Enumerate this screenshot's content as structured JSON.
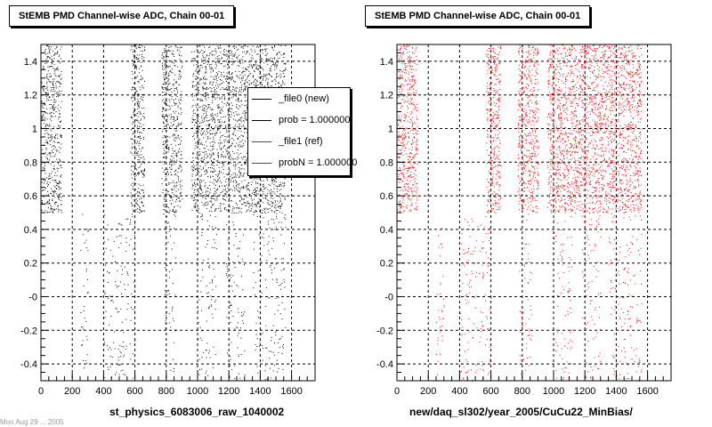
{
  "panels": [
    {
      "title": "StEMB PMD Channel-wise ADC, Chain 00-01",
      "xlabel": "st_physics_6083006_raw_1040002",
      "color": "#000000"
    },
    {
      "title": "StEMB PMD Channel-wise ADC, Chain 00-01",
      "xlabel": "new/daq_sl302/year_2005/CuCu22_MinBias/",
      "color": "#ff0000"
    }
  ],
  "legend": {
    "entries": [
      {
        "label": "_file0 (new)",
        "color": "#000000"
      },
      {
        "label": "prob = 1.000000",
        "color": "#000000"
      },
      {
        "label": "_file1 (ref)",
        "color": "#ff0000"
      },
      {
        "label": "probN = 1.000000",
        "color": "#ff0000"
      }
    ]
  },
  "footer_note": "Mon Aug 29 ... 2005",
  "chart_data": [
    {
      "type": "scatter",
      "title": "StEMB PMD Channel-wise ADC, Chain 00-01",
      "xlabel": "st_physics_6083006_raw_1040002",
      "ylabel": "",
      "xlim": [
        0,
        1750
      ],
      "ylim": [
        -0.5,
        1.5
      ],
      "xticks": [
        0,
        200,
        400,
        600,
        800,
        1000,
        1200,
        1400,
        1600
      ],
      "yticks": [
        -0.4,
        -0.2,
        0,
        0.2,
        0.4,
        0.6,
        0.8,
        1,
        1.2,
        1.4
      ],
      "ytick_labels": [
        "-0.4",
        "-0.2",
        "-0",
        "0.2",
        "0.4",
        "0.6",
        "0.8",
        "1",
        "1.2",
        "1.4"
      ],
      "grid": true,
      "series_color": "#000000",
      "dense_bands": [
        [
          0,
          130
        ],
        [
          570,
          660
        ],
        [
          770,
          900
        ],
        [
          960,
          1560
        ]
      ],
      "dense_y_range": [
        0.5,
        1.5
      ],
      "sparse_clusters": [
        [
          250,
          300
        ],
        [
          400,
          600
        ],
        [
          780,
          860
        ],
        [
          1000,
          1120
        ],
        [
          1180,
          1300
        ],
        [
          1350,
          1560
        ]
      ],
      "sparse_y_range": [
        -0.5,
        0.5
      ]
    },
    {
      "type": "scatter",
      "title": "StEMB PMD Channel-wise ADC, Chain 00-01",
      "xlabel": "new/daq_sl302/year_2005/CuCu22_MinBias/",
      "ylabel": "",
      "xlim": [
        0,
        1750
      ],
      "ylim": [
        -0.5,
        1.5
      ],
      "xticks": [
        0,
        200,
        400,
        600,
        800,
        1000,
        1200,
        1400,
        1600
      ],
      "yticks": [
        -0.4,
        -0.2,
        0,
        0.2,
        0.4,
        0.6,
        0.8,
        1,
        1.2,
        1.4
      ],
      "ytick_labels": [
        "-0.4",
        "-0.2",
        "-0",
        "0.2",
        "0.4",
        "0.6",
        "0.8",
        "1",
        "1.2",
        "1.4"
      ],
      "grid": true,
      "series_color": "#ff0000",
      "dense_bands": [
        [
          0,
          130
        ],
        [
          570,
          660
        ],
        [
          770,
          900
        ],
        [
          960,
          1560
        ]
      ],
      "dense_y_range": [
        0.5,
        1.5
      ],
      "sparse_clusters": [
        [
          250,
          300
        ],
        [
          400,
          600
        ],
        [
          780,
          860
        ],
        [
          1000,
          1120
        ],
        [
          1180,
          1300
        ],
        [
          1350,
          1560
        ]
      ],
      "sparse_y_range": [
        -0.5,
        0.5
      ]
    }
  ]
}
